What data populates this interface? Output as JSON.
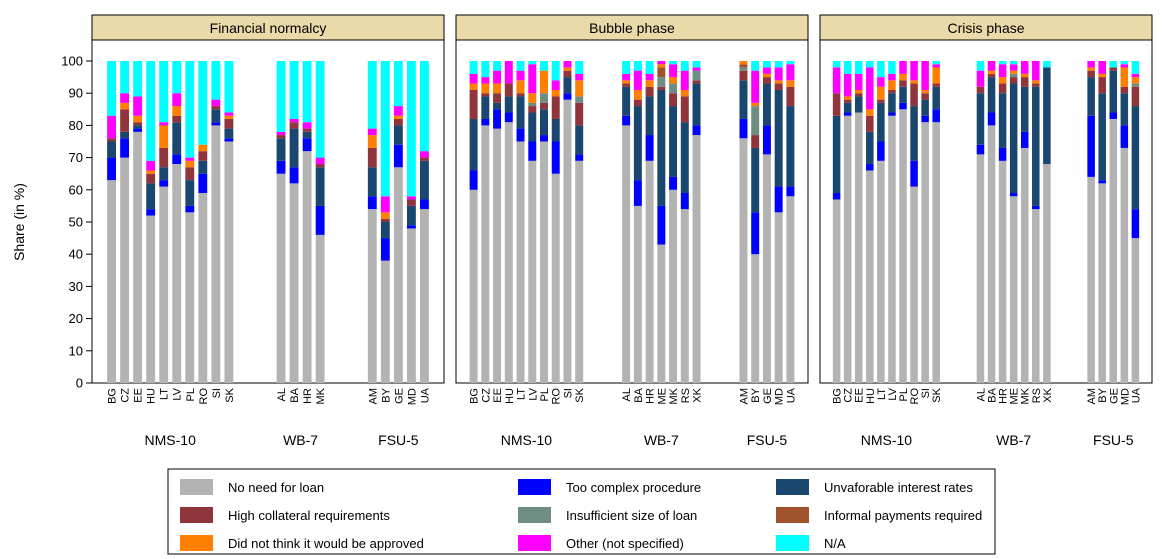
{
  "chart_data": {
    "type": "bar",
    "stacked": true,
    "ylabel": "Share (in %)",
    "ylim": [
      0,
      100
    ],
    "yticks": [
      0,
      10,
      20,
      30,
      40,
      50,
      60,
      70,
      80,
      90,
      100
    ],
    "series": [
      {
        "name": "No need for loan",
        "color": "#b3b3b3"
      },
      {
        "name": "Too complex procedure",
        "color": "#0000ff"
      },
      {
        "name": "Unvaforable interest rates",
        "color": "#1a476f"
      },
      {
        "name": "High collateral requirements",
        "color": "#90353b"
      },
      {
        "name": "Insufficient size of loan",
        "color": "#6e8e84"
      },
      {
        "name": "Informal payments required",
        "color": "#a0522d"
      },
      {
        "name": "Did not think it would be approved",
        "color": "#ff7f00"
      },
      {
        "name": "Other (not specified)",
        "color": "#ff00ff"
      },
      {
        "name": "N/A",
        "color": "#00ffff"
      }
    ],
    "panels": [
      {
        "title": "Financial normalcy",
        "groups": [
          {
            "name": "NMS-10",
            "categories": [
              "BG",
              "CZ",
              "EE",
              "HU",
              "LT",
              "LV",
              "PL",
              "RO",
              "SI",
              "SK"
            ]
          },
          {
            "name": "WB-7",
            "categories": [
              "AL",
              "BA",
              "HR",
              "MK"
            ]
          },
          {
            "name": "FSU-5",
            "categories": [
              "AM",
              "BY",
              "GE",
              "MD",
              "UA"
            ]
          }
        ],
        "values": [
          [
            63,
            70,
            78,
            52,
            61,
            68,
            53,
            59,
            80,
            75,
            65,
            62,
            72,
            46,
            54,
            38,
            67,
            48,
            54
          ],
          [
            7,
            6,
            1,
            2,
            2,
            3,
            2,
            6,
            1,
            1,
            4,
            5,
            4,
            9,
            4,
            7,
            7,
            1,
            3
          ],
          [
            5,
            2,
            1,
            8,
            4,
            10,
            8,
            4,
            4,
            3,
            7,
            12,
            2,
            12,
            9,
            5,
            6,
            6,
            12
          ],
          [
            1,
            7,
            1,
            3,
            6,
            2,
            4,
            3,
            1,
            3,
            1,
            2,
            1,
            1,
            6,
            1,
            2,
            2,
            1
          ],
          [
            0,
            0,
            0,
            0,
            0,
            0,
            0,
            0,
            0,
            0,
            0,
            0,
            0,
            0,
            0,
            0,
            0,
            0,
            0
          ],
          [
            0,
            0,
            0,
            0,
            0,
            0,
            0,
            0,
            0,
            0,
            0,
            0,
            0,
            0,
            0,
            0,
            0,
            0,
            0
          ],
          [
            0,
            2,
            2,
            1,
            7,
            3,
            2,
            2,
            0,
            1,
            0,
            0,
            0,
            0,
            4,
            2,
            1,
            0,
            0
          ],
          [
            7,
            3,
            6,
            3,
            1,
            4,
            1,
            0,
            2,
            1,
            1,
            1,
            2,
            2,
            2,
            5,
            3,
            1,
            2
          ],
          [
            17,
            10,
            11,
            31,
            19,
            10,
            30,
            26,
            12,
            16,
            22,
            18,
            19,
            30,
            21,
            42,
            14,
            42,
            28
          ]
        ]
      },
      {
        "title": "Bubble phase",
        "groups": [
          {
            "name": "NMS-10",
            "categories": [
              "BG",
              "CZ",
              "EE",
              "HU",
              "LT",
              "LV",
              "PL",
              "RO",
              "SI",
              "SK"
            ]
          },
          {
            "name": "WB-7",
            "categories": [
              "AL",
              "BA",
              "HR",
              "ME",
              "MK",
              "RS",
              "XK"
            ]
          },
          {
            "name": "FSU-5",
            "categories": [
              "AM",
              "BY",
              "GE",
              "MD",
              "UA"
            ]
          }
        ],
        "values": [
          [
            60,
            80,
            79,
            81,
            75,
            69,
            75,
            65,
            88,
            69,
            80,
            55,
            69,
            43,
            60,
            54,
            77,
            76,
            40,
            71,
            53,
            58
          ],
          [
            6,
            2,
            6,
            3,
            4,
            6,
            2,
            10,
            2,
            2,
            3,
            8,
            8,
            12,
            4,
            5,
            3,
            6,
            13,
            9,
            8,
            3
          ],
          [
            16,
            7,
            2,
            5,
            10,
            9,
            8,
            7,
            5,
            9,
            9,
            23,
            12,
            36,
            22,
            22,
            13,
            12,
            20,
            13,
            30,
            25
          ],
          [
            9,
            1,
            3,
            4,
            1,
            2,
            2,
            7,
            2,
            7,
            1,
            2,
            3,
            1,
            4,
            8,
            1,
            3,
            4,
            2,
            2,
            6
          ],
          [
            0,
            0,
            0,
            0,
            0,
            1,
            3,
            0,
            0,
            2,
            0,
            0,
            0,
            3,
            3,
            0,
            3,
            1,
            9,
            0,
            0,
            0
          ],
          [
            0,
            0,
            0,
            0,
            0,
            0,
            0,
            0,
            0,
            0,
            0,
            0,
            0,
            3,
            0,
            0,
            0,
            1,
            0,
            0,
            0,
            0
          ],
          [
            2,
            3,
            3,
            0,
            4,
            3,
            7,
            2,
            1,
            5,
            1,
            3,
            2,
            1,
            2,
            2,
            0,
            1,
            1,
            1,
            1,
            2
          ],
          [
            3,
            2,
            4,
            7,
            3,
            9,
            0,
            3,
            2,
            2,
            2,
            6,
            2,
            1,
            4,
            6,
            1,
            0,
            10,
            2,
            4,
            5
          ],
          [
            4,
            5,
            3,
            0,
            3,
            1,
            3,
            6,
            0,
            4,
            4,
            3,
            4,
            0,
            1,
            3,
            2,
            0,
            3,
            2,
            2,
            1
          ]
        ]
      },
      {
        "title": "Crisis phase",
        "groups": [
          {
            "name": "NMS-10",
            "categories": [
              "BG",
              "CZ",
              "EE",
              "HU",
              "LT",
              "LV",
              "PL",
              "RO",
              "SI",
              "SK"
            ]
          },
          {
            "name": "WB-7",
            "categories": [
              "AL",
              "BA",
              "HR",
              "ME",
              "MK",
              "RS",
              "XK"
            ]
          },
          {
            "name": "FSU-5",
            "categories": [
              "AM",
              "BY",
              "GE",
              "MD",
              "UA"
            ]
          }
        ],
        "values": [
          [
            57,
            83,
            84,
            66,
            69,
            83,
            85,
            61,
            81,
            81,
            71,
            80,
            69,
            58,
            73,
            54,
            68,
            64,
            62,
            82,
            73,
            45
          ],
          [
            2,
            1,
            0,
            2,
            6,
            1,
            2,
            8,
            2,
            4,
            3,
            4,
            4,
            1,
            5,
            1,
            0,
            19,
            1,
            2,
            7,
            9
          ],
          [
            24,
            3,
            5,
            10,
            12,
            6,
            5,
            17,
            5,
            7,
            16,
            11,
            17,
            34,
            14,
            37,
            30,
            12,
            27,
            13,
            10,
            32
          ],
          [
            7,
            1,
            1,
            5,
            1,
            1,
            2,
            7,
            2,
            1,
            2,
            1,
            3,
            2,
            3,
            1,
            0,
            2,
            5,
            1,
            2,
            6
          ],
          [
            0,
            0,
            0,
            0,
            0,
            0,
            0,
            0,
            0,
            0,
            0,
            0,
            0,
            1,
            0,
            0,
            0,
            0,
            0,
            0,
            0,
            1
          ],
          [
            0,
            0,
            0,
            0,
            0,
            0,
            0,
            0,
            0,
            0,
            0,
            0,
            0,
            0,
            0,
            0,
            0,
            0,
            0,
            0,
            0,
            0
          ],
          [
            0,
            1,
            1,
            2,
            4,
            3,
            2,
            1,
            1,
            5,
            0,
            1,
            2,
            1,
            1,
            1,
            0,
            1,
            1,
            0,
            6,
            2
          ],
          [
            8,
            7,
            5,
            13,
            3,
            2,
            4,
            6,
            9,
            1,
            5,
            3,
            4,
            2,
            4,
            6,
            0,
            2,
            4,
            0,
            1,
            1
          ],
          [
            2,
            4,
            4,
            2,
            5,
            4,
            0,
            0,
            0,
            1,
            3,
            0,
            1,
            1,
            0,
            0,
            2,
            0,
            0,
            2,
            1,
            4
          ]
        ]
      }
    ]
  }
}
